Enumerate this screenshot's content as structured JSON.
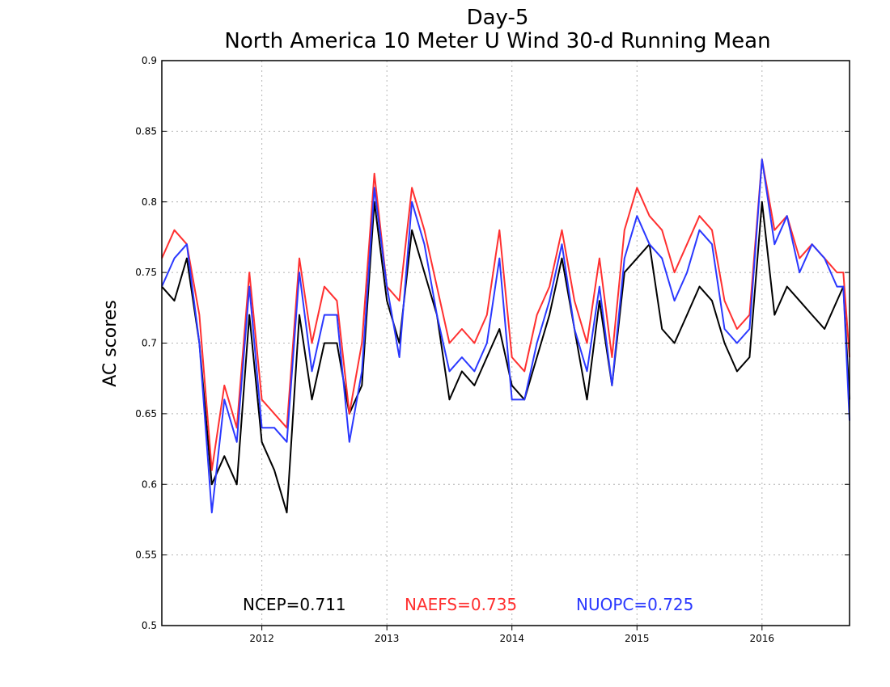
{
  "chart_data": {
    "type": "line",
    "title": "Day-5",
    "subtitle": "North America 10 Meter U Wind 30-d Running Mean",
    "ylabel": "AC scores",
    "xlabel": "",
    "ylim": [
      0.5,
      0.9
    ],
    "yticks": [
      0.5,
      0.55,
      0.6,
      0.65,
      0.7,
      0.75,
      0.8,
      0.85,
      0.9
    ],
    "ytick_labels": [
      "0.5",
      "0.55",
      "0.6",
      "0.65",
      "0.7",
      "0.75",
      "0.8",
      "0.85",
      "0.9"
    ],
    "xlim": [
      2011.2,
      2016.7
    ],
    "xticks": [
      2012,
      2013,
      2014,
      2015,
      2016
    ],
    "xtick_labels": [
      "2012",
      "2013",
      "2014",
      "2015",
      "2016"
    ],
    "grid": true,
    "legend": [
      {
        "label": "NCEP=0.711",
        "color": "#000000"
      },
      {
        "label": "NAEFS=0.735",
        "color": "#ff3030"
      },
      {
        "label": "NUOPC=0.725",
        "color": "#2a38ff"
      }
    ],
    "series": [
      {
        "name": "NCEP",
        "color": "#000000",
        "x": [
          2011.2,
          2011.3,
          2011.4,
          2011.5,
          2011.6,
          2011.7,
          2011.8,
          2011.9,
          2012.0,
          2012.1,
          2012.2,
          2012.3,
          2012.4,
          2012.5,
          2012.6,
          2012.7,
          2012.8,
          2012.9,
          2013.0,
          2013.1,
          2013.2,
          2013.3,
          2013.4,
          2013.5,
          2013.6,
          2013.7,
          2013.8,
          2013.9,
          2014.0,
          2014.1,
          2014.2,
          2014.3,
          2014.4,
          2014.5,
          2014.6,
          2014.7,
          2014.8,
          2014.9,
          2015.0,
          2015.1,
          2015.2,
          2015.3,
          2015.4,
          2015.5,
          2015.6,
          2015.7,
          2015.8,
          2015.9,
          2016.0,
          2016.1,
          2016.2,
          2016.3,
          2016.4,
          2016.5,
          2016.6,
          2016.65,
          2016.7
        ],
        "y": [
          0.74,
          0.73,
          0.76,
          0.7,
          0.6,
          0.62,
          0.6,
          0.72,
          0.63,
          0.61,
          0.58,
          0.72,
          0.66,
          0.7,
          0.7,
          0.65,
          0.67,
          0.8,
          0.73,
          0.7,
          0.78,
          0.75,
          0.72,
          0.66,
          0.68,
          0.67,
          0.69,
          0.71,
          0.67,
          0.66,
          0.69,
          0.72,
          0.76,
          0.71,
          0.66,
          0.73,
          0.67,
          0.75,
          0.76,
          0.77,
          0.71,
          0.7,
          0.72,
          0.74,
          0.73,
          0.7,
          0.68,
          0.69,
          0.8,
          0.72,
          0.74,
          0.73,
          0.72,
          0.71,
          0.73,
          0.74,
          0.66
        ]
      },
      {
        "name": "NAEFS",
        "color": "#ff3030",
        "x": [
          2011.2,
          2011.3,
          2011.4,
          2011.5,
          2011.6,
          2011.7,
          2011.8,
          2011.9,
          2012.0,
          2012.1,
          2012.2,
          2012.3,
          2012.4,
          2012.5,
          2012.6,
          2012.7,
          2012.8,
          2012.9,
          2013.0,
          2013.1,
          2013.2,
          2013.3,
          2013.4,
          2013.5,
          2013.6,
          2013.7,
          2013.8,
          2013.9,
          2014.0,
          2014.1,
          2014.2,
          2014.3,
          2014.4,
          2014.5,
          2014.6,
          2014.7,
          2014.8,
          2014.9,
          2015.0,
          2015.1,
          2015.2,
          2015.3,
          2015.4,
          2015.5,
          2015.6,
          2015.7,
          2015.8,
          2015.9,
          2016.0,
          2016.1,
          2016.2,
          2016.3,
          2016.4,
          2016.5,
          2016.6,
          2016.65,
          2016.7
        ],
        "y": [
          0.76,
          0.78,
          0.77,
          0.72,
          0.61,
          0.67,
          0.64,
          0.75,
          0.66,
          0.65,
          0.64,
          0.76,
          0.7,
          0.74,
          0.73,
          0.65,
          0.7,
          0.82,
          0.74,
          0.73,
          0.81,
          0.78,
          0.74,
          0.7,
          0.71,
          0.7,
          0.72,
          0.78,
          0.69,
          0.68,
          0.72,
          0.74,
          0.78,
          0.73,
          0.7,
          0.76,
          0.69,
          0.78,
          0.81,
          0.79,
          0.78,
          0.75,
          0.77,
          0.79,
          0.78,
          0.73,
          0.71,
          0.72,
          0.83,
          0.78,
          0.79,
          0.76,
          0.77,
          0.76,
          0.75,
          0.75,
          0.69
        ]
      },
      {
        "name": "NUOPC",
        "color": "#2a38ff",
        "x": [
          2011.2,
          2011.3,
          2011.4,
          2011.5,
          2011.6,
          2011.7,
          2011.8,
          2011.9,
          2012.0,
          2012.1,
          2012.2,
          2012.3,
          2012.4,
          2012.5,
          2012.6,
          2012.7,
          2012.8,
          2012.9,
          2013.0,
          2013.1,
          2013.2,
          2013.3,
          2013.4,
          2013.5,
          2013.6,
          2013.7,
          2013.8,
          2013.9,
          2014.0,
          2014.1,
          2014.2,
          2014.3,
          2014.4,
          2014.5,
          2014.6,
          2014.7,
          2014.8,
          2014.9,
          2015.0,
          2015.1,
          2015.2,
          2015.3,
          2015.4,
          2015.5,
          2015.6,
          2015.7,
          2015.8,
          2015.9,
          2016.0,
          2016.1,
          2016.2,
          2016.3,
          2016.4,
          2016.5,
          2016.6,
          2016.65,
          2016.7
        ],
        "y": [
          0.74,
          0.76,
          0.77,
          0.7,
          0.58,
          0.66,
          0.63,
          0.74,
          0.64,
          0.64,
          0.63,
          0.75,
          0.68,
          0.72,
          0.72,
          0.63,
          0.68,
          0.81,
          0.74,
          0.69,
          0.8,
          0.77,
          0.72,
          0.68,
          0.69,
          0.68,
          0.7,
          0.76,
          0.66,
          0.66,
          0.7,
          0.73,
          0.77,
          0.71,
          0.68,
          0.74,
          0.67,
          0.76,
          0.79,
          0.77,
          0.76,
          0.73,
          0.75,
          0.78,
          0.77,
          0.71,
          0.7,
          0.71,
          0.83,
          0.77,
          0.79,
          0.75,
          0.77,
          0.76,
          0.74,
          0.74,
          0.645
        ]
      }
    ]
  }
}
